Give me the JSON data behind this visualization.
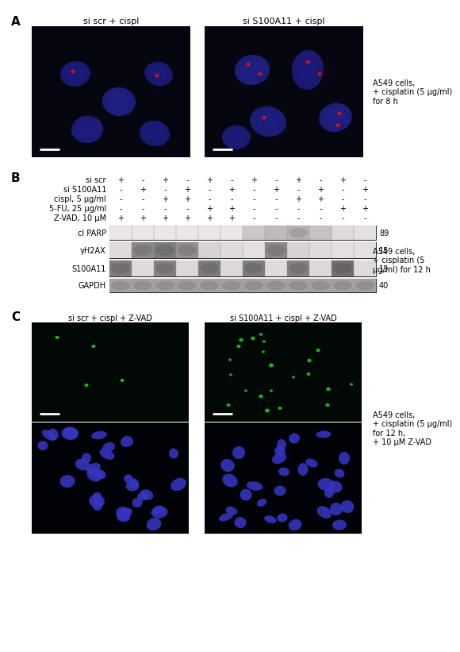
{
  "panel_A_label": "A",
  "panel_B_label": "B",
  "panel_C_label": "C",
  "panel_A_left_title": "si scr + cispl",
  "panel_A_right_title": "si S100A11 + cispl",
  "panel_A_right_text": "A549 cells,\n+ cisplatin (5 μg/ml)\nfor 8 h",
  "panel_B_rows": [
    "si scr",
    "si S100A11",
    "cispl, 5 μg/ml",
    "5-FU, 25 μg/ml",
    "Z-VAD, 10 μM"
  ],
  "panel_B_data": [
    [
      "+",
      "-",
      "+",
      "-",
      "+",
      "-",
      "+",
      "-",
      "+",
      "-",
      "+",
      "-"
    ],
    [
      "-",
      "+",
      "-",
      "+",
      "-",
      "+",
      "-",
      "+",
      "-",
      "+",
      "-",
      "+"
    ],
    [
      "-",
      "-",
      "+",
      "+",
      "-",
      "-",
      "-",
      "-",
      "+",
      "+",
      "-",
      "-"
    ],
    [
      "-",
      "-",
      "-",
      "-",
      "+",
      "+",
      "-",
      "-",
      "-",
      "-",
      "+",
      "+"
    ],
    [
      "+",
      "+",
      "+",
      "+",
      "+",
      "+",
      "-",
      "-",
      "-",
      "-",
      "-",
      "-"
    ]
  ],
  "panel_B_blots": [
    "cl PARP",
    "γH2AX",
    "S100A11",
    "GAPDH"
  ],
  "panel_B_kda": [
    "89",
    "15",
    "13",
    "40"
  ],
  "panel_B_right_text": "A549 cells,\n+ cisplatin (5\nμg/ml) for 12 h",
  "panel_C_left_title": "si scr + cispl + Z-VAD",
  "panel_C_right_title": "si S100A11 + cispl + Z-VAD",
  "panel_C_right_text": "A549 cells,\n+ cisplatin (5 μg/ml)\nfor 12 h,\n+ 10 μM Z-VAD",
  "font_size_labels": 8,
  "font_size_small": 7,
  "font_size_panel": 11
}
